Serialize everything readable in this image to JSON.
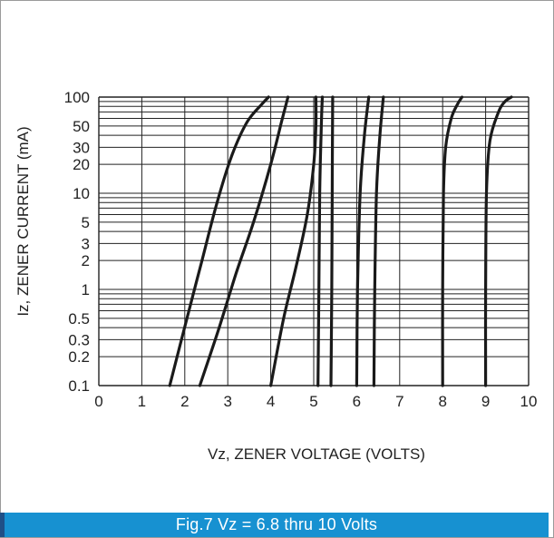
{
  "caption": "Fig.7 Vz = 6.8 thru 10 Volts",
  "colors": {
    "caption_bg": "#1791d1",
    "curve": "#1a1a1a",
    "grid": "#222222"
  },
  "chart_data": {
    "type": "line",
    "title": "",
    "xlabel": "Vz, ZENER VOLTAGE (VOLTS)",
    "ylabel": "Iz, ZENER CURRENT (mA)",
    "xlim": [
      0,
      10
    ],
    "ylim": [
      0.1,
      100
    ],
    "yscale": "log",
    "grid": true,
    "x_ticks": [
      "0",
      "1",
      "2",
      "3",
      "4",
      "5",
      "6",
      "7",
      "8",
      "9",
      "10"
    ],
    "y_ticks": [
      {
        "label": "100",
        "value": 100
      },
      {
        "label": "50",
        "value": 50
      },
      {
        "label": "30",
        "value": 30
      },
      {
        "label": "20",
        "value": 20
      },
      {
        "label": "10",
        "value": 10
      },
      {
        "label": "5",
        "value": 5
      },
      {
        "label": "3",
        "value": 3
      },
      {
        "label": "2",
        "value": 2
      },
      {
        "label": "1",
        "value": 1
      },
      {
        "label": "0.5",
        "value": 0.5
      },
      {
        "label": "0.3",
        "value": 0.3
      },
      {
        "label": "0.2",
        "value": 0.2
      },
      {
        "label": "0.1",
        "value": 0.1
      }
    ],
    "series": [
      {
        "points": [
          [
            1.65,
            0.1
          ],
          [
            2.05,
            0.5
          ],
          [
            2.4,
            2
          ],
          [
            2.75,
            8
          ],
          [
            3.1,
            25
          ],
          [
            3.45,
            55
          ],
          [
            3.8,
            85
          ],
          [
            3.95,
            100
          ]
        ]
      },
      {
        "points": [
          [
            2.35,
            0.1
          ],
          [
            2.8,
            0.4
          ],
          [
            3.2,
            1.5
          ],
          [
            3.6,
            5
          ],
          [
            4.0,
            20
          ],
          [
            4.25,
            55
          ],
          [
            4.4,
            100
          ]
        ]
      },
      {
        "points": [
          [
            4.0,
            0.1
          ],
          [
            4.3,
            0.5
          ],
          [
            4.6,
            1.8
          ],
          [
            4.85,
            6
          ],
          [
            5.0,
            20
          ],
          [
            5.05,
            50
          ],
          [
            5.05,
            100
          ]
        ]
      },
      {
        "points": [
          [
            5.1,
            0.1
          ],
          [
            5.12,
            1
          ],
          [
            5.14,
            10
          ],
          [
            5.17,
            40
          ],
          [
            5.2,
            100
          ]
        ]
      },
      {
        "points": [
          [
            5.4,
            0.1
          ],
          [
            5.42,
            1
          ],
          [
            5.43,
            10
          ],
          [
            5.44,
            100
          ]
        ]
      },
      {
        "points": [
          [
            6.0,
            0.1
          ],
          [
            6.02,
            1
          ],
          [
            6.08,
            10
          ],
          [
            6.18,
            40
          ],
          [
            6.28,
            100
          ]
        ]
      },
      {
        "points": [
          [
            6.4,
            0.1
          ],
          [
            6.42,
            1
          ],
          [
            6.46,
            10
          ],
          [
            6.54,
            40
          ],
          [
            6.62,
            100
          ]
        ]
      },
      {
        "points": [
          [
            8.0,
            0.1
          ],
          [
            8.0,
            1
          ],
          [
            8.02,
            10
          ],
          [
            8.07,
            30
          ],
          [
            8.2,
            60
          ],
          [
            8.35,
            85
          ],
          [
            8.45,
            100
          ]
        ]
      },
      {
        "points": [
          [
            9.0,
            0.1
          ],
          [
            9.0,
            1
          ],
          [
            9.02,
            10
          ],
          [
            9.1,
            35
          ],
          [
            9.3,
            70
          ],
          [
            9.45,
            90
          ],
          [
            9.6,
            100
          ]
        ]
      }
    ]
  }
}
